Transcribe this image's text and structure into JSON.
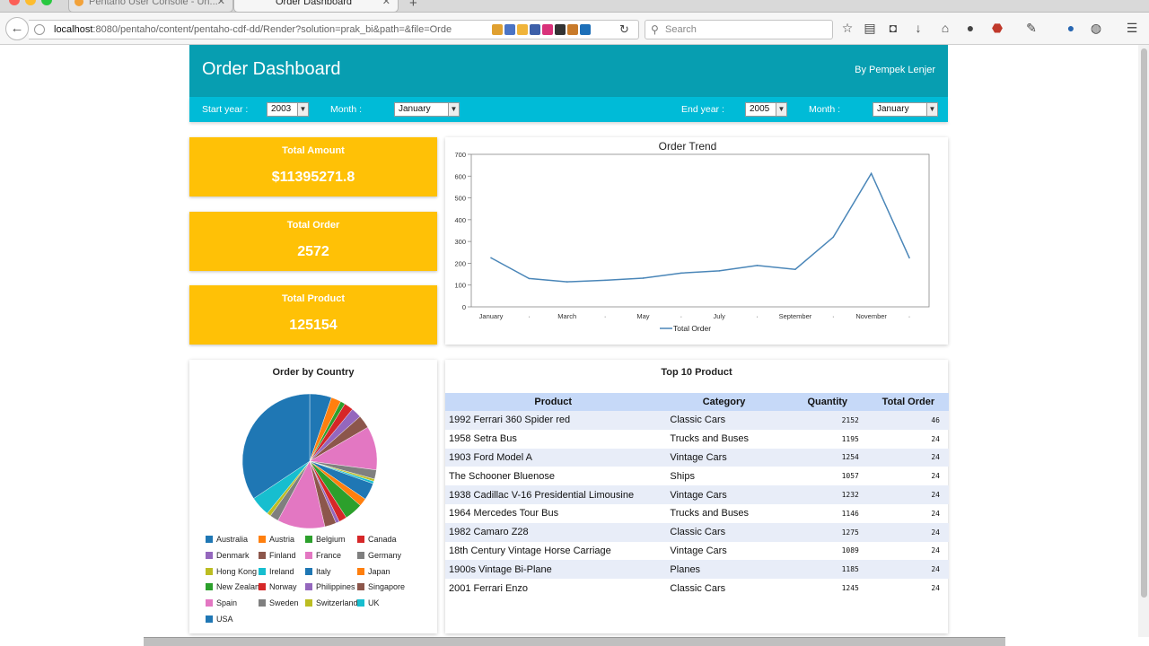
{
  "browser": {
    "tabs": [
      {
        "title": "Pentaho User Console - Un...",
        "active": false
      },
      {
        "title": "Order Dashboard",
        "active": true
      }
    ],
    "url_host": "localhost",
    "url_rest": ":8080/pentaho/content/pentaho-cdf-dd/Render?solution=prak_bi&path=&file=Orde",
    "search_placeholder": "Search"
  },
  "dashboard": {
    "title": "Order Dashboard",
    "author": "By Pempek Lenjer",
    "filters": {
      "start_year_label": "Start year :",
      "start_year": "2003",
      "start_month_label": "Month :",
      "start_month": "January",
      "end_year_label": "End year :",
      "end_year": "2005",
      "end_month_label": "Month :",
      "end_month": "January"
    },
    "kpis": [
      {
        "label": "Total Amount",
        "value": "$11395271.8"
      },
      {
        "label": "Total Order",
        "value": "2572"
      },
      {
        "label": "Total Product",
        "value": "125154"
      }
    ],
    "pie": {
      "title": "Order by Country"
    },
    "table": {
      "title": "Top 10 Product",
      "headers": [
        "Product",
        "Category",
        "Quantity",
        "Total Order"
      ],
      "rows": [
        [
          "1992 Ferrari 360 Spider red",
          "Classic Cars",
          "2152",
          "46"
        ],
        [
          "1958 Setra Bus",
          "Trucks and Buses",
          "1195",
          "24"
        ],
        [
          "1903 Ford Model A",
          "Vintage Cars",
          "1254",
          "24"
        ],
        [
          "The Schooner Bluenose",
          "Ships",
          "1057",
          "24"
        ],
        [
          "1938 Cadillac V-16 Presidential Limousine",
          "Vintage Cars",
          "1232",
          "24"
        ],
        [
          "1964 Mercedes Tour Bus",
          "Trucks and Buses",
          "1146",
          "24"
        ],
        [
          "1982 Camaro Z28",
          "Classic Cars",
          "1275",
          "24"
        ],
        [
          "18th Century Vintage Horse Carriage",
          "Vintage Cars",
          "1089",
          "24"
        ],
        [
          "1900s Vintage Bi-Plane",
          "Planes",
          "1185",
          "24"
        ],
        [
          "2001 Ferrari Enzo",
          "Classic Cars",
          "1245",
          "24"
        ]
      ]
    }
  },
  "chart_data": [
    {
      "type": "line",
      "title": "Order Trend",
      "categories": [
        "January",
        "February",
        "March",
        "April",
        "May",
        "June",
        "July",
        "August",
        "September",
        "October",
        "November",
        "December"
      ],
      "tick_labels": [
        "January",
        "·",
        "March",
        "·",
        "May",
        "·",
        "July",
        "·",
        "September",
        "·",
        "November",
        "·"
      ],
      "series": [
        {
          "name": "Total Order",
          "values": [
            225,
            130,
            115,
            122,
            132,
            155,
            165,
            190,
            172,
            320,
            612,
            225
          ]
        }
      ],
      "ylim": [
        0,
        700
      ],
      "yticks": [
        0,
        100,
        200,
        300,
        400,
        500,
        600,
        700
      ],
      "color": "#4a86b8",
      "legend": "bottom"
    },
    {
      "type": "pie",
      "title": "Order by Country",
      "labels": [
        "Australia",
        "Austria",
        "Belgium",
        "Canada",
        "Denmark",
        "Finland",
        "France",
        "Germany",
        "Hong Kong",
        "Ireland",
        "Italy",
        "Japan",
        "New Zealand",
        "Norway",
        "Philippines",
        "Singapore",
        "Spain",
        "Sweden",
        "Switzerland",
        "UK",
        "USA"
      ],
      "values": [
        5.5,
        2.5,
        1.2,
        2.3,
        2.6,
        3.3,
        11.0,
        2.3,
        0.6,
        0.6,
        4.3,
        2.0,
        4.6,
        2.0,
        0.9,
        2.9,
        12.0,
        2.2,
        1.0,
        5.0,
        36.0
      ],
      "colors": [
        "#1f77b4",
        "#ff7f0e",
        "#2ca02c",
        "#d62728",
        "#9467bd",
        "#8c564b",
        "#e377c2",
        "#7f7f7f",
        "#bcbd22",
        "#17becf",
        "#1f77b4",
        "#ff7f0e",
        "#2ca02c",
        "#d62728",
        "#9467bd",
        "#8c564b",
        "#e377c2",
        "#7f7f7f",
        "#bcbd22",
        "#17becf",
        "#1f77b4"
      ],
      "legend": "bottom"
    }
  ]
}
